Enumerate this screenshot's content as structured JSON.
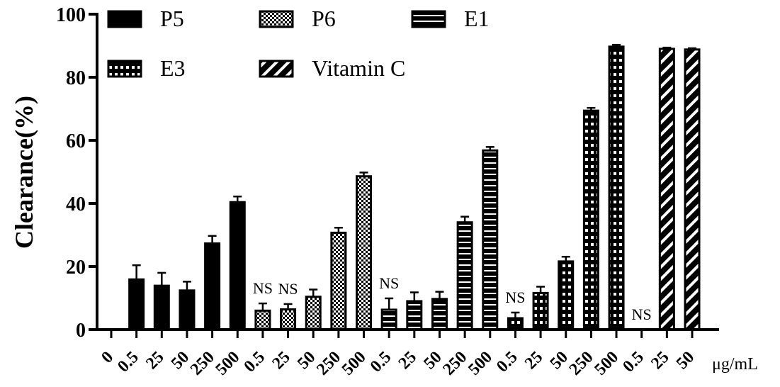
{
  "chart_data": {
    "type": "bar",
    "ylabel": "Clearance(%)",
    "xlabel": "",
    "unit_label": "μg/mL",
    "ylim": [
      0,
      100
    ],
    "yticks": [
      "0",
      "20",
      "40",
      "60",
      "80",
      "100"
    ],
    "legend_placement": "top",
    "legend": [
      {
        "name": "P5",
        "pattern": "solid"
      },
      {
        "name": "P6",
        "pattern": "checker"
      },
      {
        "name": "E1",
        "pattern": "hstripe"
      },
      {
        "name": "E3",
        "pattern": "dots"
      },
      {
        "name": "Vitamin C",
        "pattern": "diag"
      }
    ],
    "bars": [
      {
        "category": "0",
        "value": 0,
        "error": 0,
        "pattern": "solid",
        "annotation": ""
      },
      {
        "category": "0.5",
        "value": 15.9,
        "error": 4.5,
        "pattern": "solid",
        "annotation": ""
      },
      {
        "category": "25",
        "value": 13.9,
        "error": 4.1,
        "pattern": "solid",
        "annotation": ""
      },
      {
        "category": "50",
        "value": 12.4,
        "error": 2.8,
        "pattern": "solid",
        "annotation": ""
      },
      {
        "category": "250",
        "value": 27.3,
        "error": 2.4,
        "pattern": "solid",
        "annotation": ""
      },
      {
        "category": "500",
        "value": 40.4,
        "error": 1.8,
        "pattern": "solid",
        "annotation": ""
      },
      {
        "category": "0.5",
        "value": 6.0,
        "error": 2.3,
        "pattern": "checker",
        "annotation": "NS"
      },
      {
        "category": "25",
        "value": 6.4,
        "error": 1.7,
        "pattern": "checker",
        "annotation": "NS"
      },
      {
        "category": "50",
        "value": 10.4,
        "error": 2.3,
        "pattern": "checker",
        "annotation": ""
      },
      {
        "category": "250",
        "value": 30.7,
        "error": 1.6,
        "pattern": "checker",
        "annotation": ""
      },
      {
        "category": "500",
        "value": 48.6,
        "error": 1.2,
        "pattern": "checker",
        "annotation": ""
      },
      {
        "category": "0.5",
        "value": 6.3,
        "error": 3.6,
        "pattern": "hstripe",
        "annotation": "NS"
      },
      {
        "category": "25",
        "value": 9.0,
        "error": 2.8,
        "pattern": "hstripe",
        "annotation": ""
      },
      {
        "category": "50",
        "value": 9.7,
        "error": 2.3,
        "pattern": "hstripe",
        "annotation": ""
      },
      {
        "category": "250",
        "value": 34.0,
        "error": 1.8,
        "pattern": "hstripe",
        "annotation": ""
      },
      {
        "category": "500",
        "value": 56.8,
        "error": 1.1,
        "pattern": "hstripe",
        "annotation": ""
      },
      {
        "category": "0.5",
        "value": 3.6,
        "error": 1.8,
        "pattern": "dots",
        "annotation": "NS"
      },
      {
        "category": "25",
        "value": 11.6,
        "error": 2.0,
        "pattern": "dots",
        "annotation": ""
      },
      {
        "category": "50",
        "value": 21.6,
        "error": 1.5,
        "pattern": "dots",
        "annotation": ""
      },
      {
        "category": "250",
        "value": 69.4,
        "error": 0.9,
        "pattern": "dots",
        "annotation": ""
      },
      {
        "category": "500",
        "value": 89.7,
        "error": 0.6,
        "pattern": "dots",
        "annotation": ""
      },
      {
        "category": "0.5",
        "value": 0,
        "error": 0,
        "pattern": "diag",
        "annotation": "NS"
      },
      {
        "category": "25",
        "value": 89.0,
        "error": 0.4,
        "pattern": "diag",
        "annotation": ""
      },
      {
        "category": "50",
        "value": 88.8,
        "error": 0.4,
        "pattern": "diag",
        "annotation": ""
      }
    ]
  }
}
